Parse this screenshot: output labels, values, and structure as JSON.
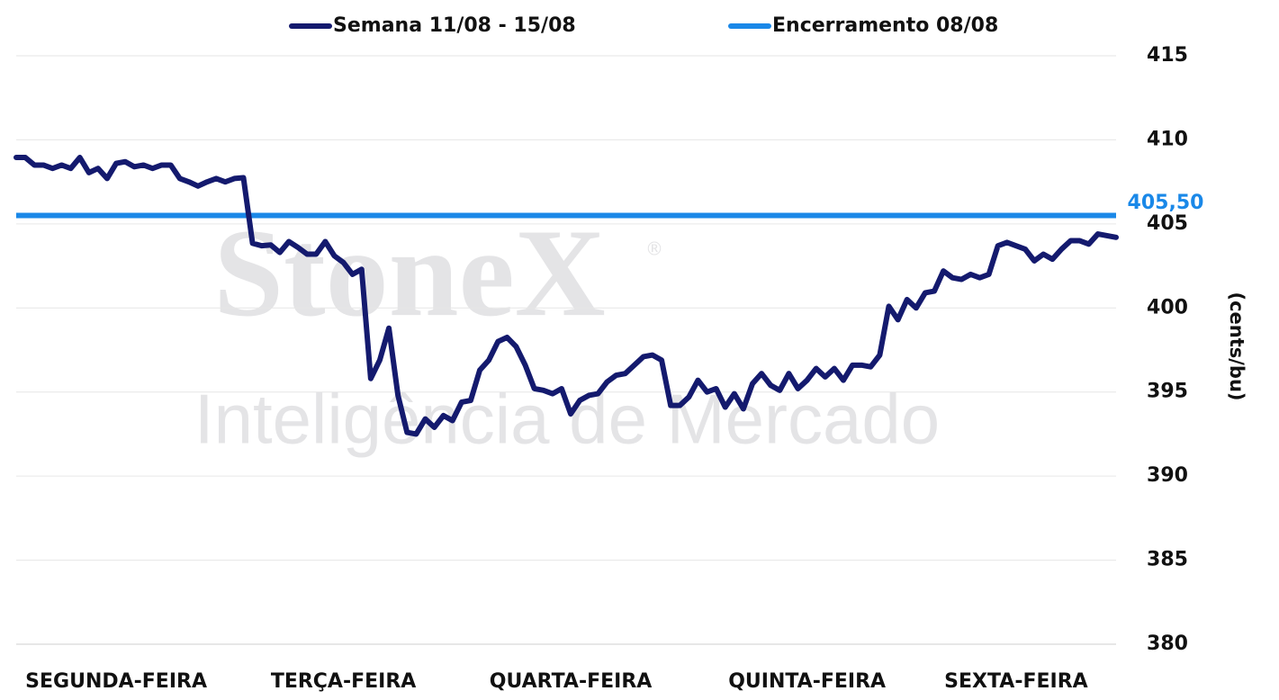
{
  "chart_data": {
    "type": "line",
    "watermark": {
      "brand": "StoneX",
      "brand_mark": "®",
      "tagline": "Inteligência de Mercado"
    },
    "y_label": "(cents/bu)",
    "categories": [
      null,
      null,
      null,
      null,
      null,
      null,
      null,
      null,
      null,
      null,
      null,
      "SEGUNDA-FEIRA",
      null,
      null,
      null,
      null,
      null,
      null,
      null,
      null,
      null,
      null,
      null,
      null,
      null,
      null,
      null,
      null,
      null,
      null,
      null,
      null,
      null,
      null,
      null,
      null,
      "TERÇA-FEIRA",
      null,
      null,
      null,
      null,
      null,
      null,
      null,
      null,
      null,
      null,
      null,
      null,
      null,
      null,
      null,
      null,
      null,
      null,
      null,
      null,
      null,
      null,
      null,
      null,
      "QUARTA-FEIRA",
      null,
      null,
      null,
      null,
      null,
      null,
      null,
      null,
      null,
      null,
      null,
      null,
      null,
      null,
      null,
      null,
      null,
      null,
      null,
      null,
      null,
      null,
      null,
      null,
      null,
      "QUINTA-FEIRA",
      null,
      null,
      null,
      null,
      null,
      null,
      null,
      null,
      null,
      null,
      null,
      null,
      null,
      null,
      null,
      null,
      null,
      null,
      null,
      null,
      null,
      null,
      "SEXTA-FEIRA",
      null,
      null,
      null,
      null,
      null,
      null,
      null,
      null,
      null,
      null,
      null
    ],
    "series": [
      {
        "name": "Semana 11/08 - 15/08",
        "color": "#141a6e",
        "values": [
          408.95,
          408.95,
          408.5,
          408.5,
          408.3,
          408.5,
          408.3,
          408.95,
          408.05,
          408.3,
          407.7,
          408.6,
          408.7,
          408.4,
          408.5,
          408.3,
          408.5,
          408.5,
          407.7,
          407.5,
          407.25,
          407.5,
          407.7,
          407.5,
          407.7,
          407.75,
          403.85,
          403.7,
          403.75,
          403.3,
          403.95,
          403.6,
          403.2,
          403.2,
          403.95,
          403.1,
          402.7,
          402.0,
          402.3,
          395.8,
          396.9,
          398.8,
          394.8,
          392.6,
          392.5,
          393.4,
          392.9,
          393.6,
          393.3,
          394.4,
          394.5,
          396.3,
          396.9,
          398.0,
          398.25,
          397.7,
          396.6,
          395.2,
          395.1,
          394.9,
          395.2,
          393.7,
          394.5,
          394.8,
          394.9,
          395.6,
          396.0,
          396.1,
          396.6,
          397.1,
          397.2,
          396.9,
          394.2,
          394.2,
          394.7,
          395.7,
          395.0,
          395.2,
          394.1,
          394.9,
          394.0,
          395.5,
          396.1,
          395.4,
          395.1,
          396.1,
          395.2,
          395.7,
          396.4,
          395.9,
          396.4,
          395.7,
          396.6,
          396.6,
          396.5,
          397.2,
          400.1,
          399.3,
          400.5,
          400.0,
          400.9,
          401.0,
          402.2,
          401.8,
          401.7,
          402.0,
          401.8,
          402.0,
          403.7,
          403.9,
          403.7,
          403.5,
          402.8,
          403.2,
          402.9,
          403.5,
          404.0,
          404.0,
          403.8,
          404.4,
          404.3,
          404.2
        ]
      }
    ],
    "reference_line": {
      "name": "Encerramento 08/08",
      "color": "#1a88e8",
      "value": 405.5,
      "value_label": "405,50"
    },
    "ylim": [
      380,
      415
    ],
    "yticks": [
      380,
      385,
      390,
      395,
      400,
      405,
      410,
      415
    ],
    "grid": true
  }
}
